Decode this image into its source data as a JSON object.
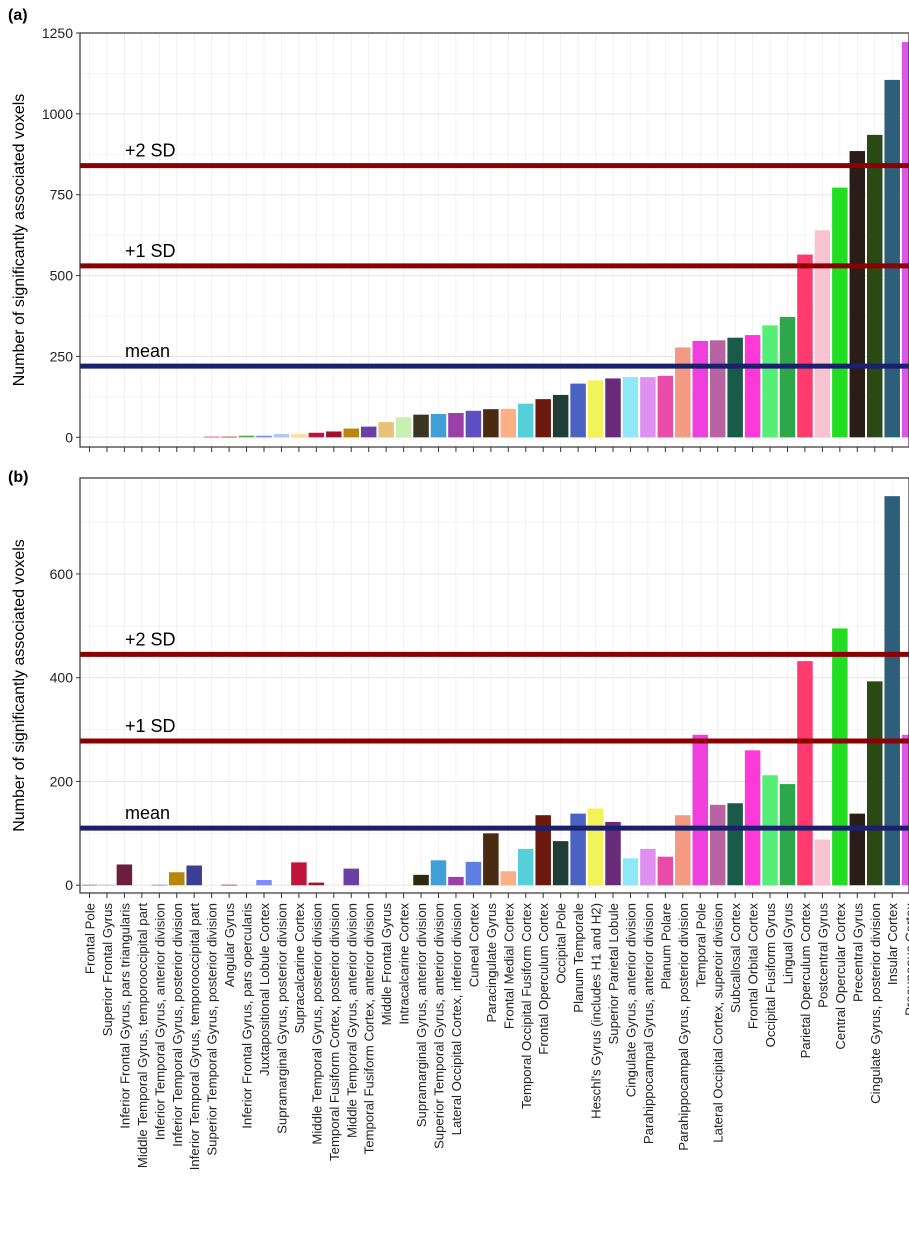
{
  "chart_data": [
    {
      "type": "bar",
      "panel_label": "(a)",
      "title": "",
      "xlabel": "",
      "ylabel": "Number of significantly associated voxels",
      "ylim": [
        -30,
        1250
      ],
      "yticks": [
        0,
        250,
        500,
        750,
        1000,
        1250
      ],
      "grid": true,
      "legend": "none",
      "categories": [
        "Frontal Pole",
        "Superior Frontal Gyrus",
        "Inferior Frontal Gyrus, pars triangularis",
        "Middle Temporal Gyrus, temporooccipital part",
        "Inferior Temporal Gyrus, anterior division",
        "Inferior Temporal Gyrus, posterior division",
        "Inferior Temporal Gyrus, temporooccipital part",
        "Superior Temporal Gyrus, posterior division",
        "Angular Gyrus",
        "Inferior Frontal Gyrus, pars opercularis",
        "Juxtapositional Lobule Cortex",
        "Supramarginal Gyrus, posterior division",
        "Supracalcarine Cortex",
        "Middle Temporal Gyrus, posterior division",
        "Temporal Fusiform Cortex, posterior division",
        "Middle Temporal Gyrus, anterior division",
        "Temporal Fusiform Cortex, anterior division",
        "Middle Frontal Gyrus",
        "Intracalcarine Cortex",
        "Supramarginal Gyrus, anterior division",
        "Superior Temporal Gyrus, anterior division",
        "Lateral Occipital Cortex, inferior division",
        "Cuneal Cortex",
        "Paracingulate Gyrus",
        "Frontal Medial Cortex",
        "Temporal Occipital Fusiform Cortex",
        "Frontal Operculum Cortex",
        "Occipital Pole",
        "Planum Temporale",
        "Heschl's Gyrus (includes H1 and H2)",
        "Superior Parietal Lobule",
        "Cingulate Gyrus, anterior division",
        "Parahippocampal Gyrus, anterior division",
        "Planum Polare",
        "Parahippocampal Gyrus, posterior division",
        "Temporal Pole",
        "Lateral Occipital Cortex, superoir division",
        "Subcallosal Cortex",
        "Frontal Orbital Cortex",
        "Occipital Fusiform Gyrus",
        "Lingual Gyrus",
        "Parietal Operculum Cortex",
        "Postcentral Gyrus",
        "Central Opercular Cortex",
        "Precentral Gyrus",
        "Cingulate Gyrus, posterior division",
        "Insular Cortex",
        "Precuneous Cortex"
      ],
      "values": [
        0,
        0,
        0,
        0,
        0,
        0,
        0,
        2,
        2,
        5,
        5,
        10,
        10,
        14,
        18,
        27,
        33,
        47,
        62,
        70,
        72,
        75,
        82,
        87,
        88,
        104,
        118,
        131,
        166,
        176,
        182,
        186,
        186,
        190,
        278,
        298,
        300,
        308,
        316,
        346,
        372,
        565,
        640,
        772,
        885,
        935,
        1105,
        1222
      ],
      "colors": [
        "#7f7f7f",
        "#b3b3b3",
        "#6b1f3c",
        "#9b5fb8",
        "#7a8fd0",
        "#e2b03a",
        "#3b3e91",
        "#ff33b5",
        "#c0392b",
        "#4caf50",
        "#7b8cff",
        "#a8c8ff",
        "#ffdd99",
        "#c0143c",
        "#a0112e",
        "#b8860b",
        "#6a3fa6",
        "#e6c27a",
        "#c7f0b0",
        "#3a3521",
        "#3f9fd6",
        "#9b3fa6",
        "#5d4fc2",
        "#4a2a10",
        "#ffaf85",
        "#55d0d8",
        "#6b1a0d",
        "#1e3d35",
        "#4a62c2",
        "#f2f25a",
        "#6a2a7a",
        "#8ee8f7",
        "#e090f0",
        "#e94ca8",
        "#f59a82",
        "#ef3fdf",
        "#b864a4",
        "#1a5a4a",
        "#ff38d8",
        "#55ee77",
        "#2ea64a",
        "#ff3a6e",
        "#f7c3d3",
        "#22dd22",
        "#2a1d18",
        "#2a4a14",
        "#2e5f7a",
        "#dc56e8"
      ],
      "reference_lines": [
        {
          "label": "mean",
          "value": 220,
          "color": "#1a1f6e"
        },
        {
          "label": "+1 SD",
          "value": 530,
          "color": "#8b0000"
        },
        {
          "label": "+2 SD",
          "value": 840,
          "color": "#8b0000"
        }
      ]
    },
    {
      "type": "bar",
      "panel_label": "(b)",
      "title": "",
      "xlabel": "",
      "ylabel": "Number of significantly associated voxels",
      "ylim": [
        -15,
        785
      ],
      "yticks": [
        0,
        200,
        400,
        600
      ],
      "grid": true,
      "legend": "none",
      "categories": [
        "Frontal Pole",
        "Superior Frontal Gyrus",
        "Inferior Frontal Gyrus, pars triangularis",
        "Middle Temporal Gyrus, temporooccipital part",
        "Inferior Temporal Gyrus, anterior division",
        "Inferior Temporal Gyrus, posterior division",
        "Inferior Temporal Gyrus, temporooccipital part",
        "Superior Temporal Gyrus, posterior division",
        "Angular Gyrus",
        "Inferior Frontal Gyrus, pars opercularis",
        "Juxtapositional Lobule Cortex",
        "Supramarginal Gyrus, posterior division",
        "Supracalcarine Cortex",
        "Middle Temporal Gyrus, posterior division",
        "Temporal Fusiform Cortex, posterior division",
        "Middle Temporal Gyrus, anterior division",
        "Temporal Fusiform Cortex, anterior division",
        "Middle Frontal Gyrus",
        "Intracalcarine Cortex",
        "Supramarginal Gyrus, anterior division",
        "Superior Temporal Gyrus, anterior division",
        "Lateral Occipital Cortex, inferior division",
        "Cuneal Cortex",
        "Paracingulate Gyrus",
        "Frontal Medial Cortex",
        "Temporal Occipital Fusiform Cortex",
        "Frontal Operculum Cortex",
        "Occipital Pole",
        "Planum Temporale",
        "Heschl's Gyrus (includes H1 and H2)",
        "Superior Parietal Lobule",
        "Cingulate Gyrus, anterior division",
        "Parahippocampal Gyrus, anterior division",
        "Planum Polare",
        "Parahippocampal Gyrus, posterior division",
        "Temporal Pole",
        "Lateral Occipital Cortex, superoir division",
        "Subcallosal Cortex",
        "Frontal Orbital Cortex",
        "Occipital Fusiform Gyrus",
        "Lingual Gyrus",
        "Parietal Operculum Cortex",
        "Postcentral Gyrus",
        "Central Opercular Cortex",
        "Precentral Gyrus",
        "Cingulate Gyrus, posterior division",
        "Insular Cortex",
        "Precuneous Cortex"
      ],
      "values": [
        1,
        1,
        40,
        0,
        1,
        25,
        38,
        0,
        1,
        0,
        10,
        0,
        44,
        5,
        0,
        32,
        0,
        0,
        0,
        20,
        48,
        16,
        45,
        100,
        27,
        70,
        135,
        85,
        138,
        148,
        122,
        52,
        70,
        55,
        135,
        290,
        155,
        158,
        260,
        212,
        195,
        432,
        88,
        495,
        138,
        393,
        750,
        290
      ],
      "colors": [
        "#7f7f7f",
        "#b3b3b3",
        "#6b1f3c",
        "#9b5fb8",
        "#7a8fd0",
        "#b8860b",
        "#3b3e91",
        "#ff33b5",
        "#c0392b",
        "#4caf50",
        "#7b8cff",
        "#a8c8ff",
        "#c0143c",
        "#a0112e",
        "#b8860b",
        "#6a3fa6",
        "#e6c27a",
        "#c7f0b0",
        "#3a3521",
        "#2a2a10",
        "#3f9fd6",
        "#9b3fa6",
        "#5d7fe2",
        "#4a2a10",
        "#ffaf85",
        "#55d0d8",
        "#6b1a0d",
        "#1e3d35",
        "#4a62c2",
        "#f2f25a",
        "#6a2a7a",
        "#8ee8f7",
        "#e090f0",
        "#e94ca8",
        "#f59a82",
        "#ef3fdf",
        "#b864a4",
        "#1a5a4a",
        "#ff38d8",
        "#55ee77",
        "#2ea64a",
        "#ff3a6e",
        "#f7c3d3",
        "#22dd22",
        "#2a1d18",
        "#2a4a14",
        "#2e5f7a",
        "#dc56e8"
      ],
      "reference_lines": [
        {
          "label": "mean",
          "value": 110,
          "color": "#1a1f6e"
        },
        {
          "label": "+1 SD",
          "value": 278,
          "color": "#8b0000"
        },
        {
          "label": "+2 SD",
          "value": 445,
          "color": "#8b0000"
        }
      ]
    }
  ]
}
